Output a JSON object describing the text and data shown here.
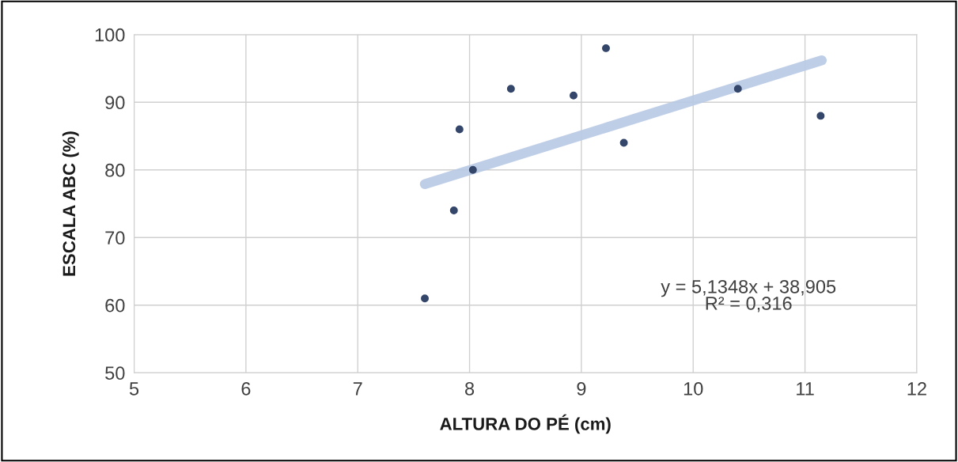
{
  "chart_data": {
    "type": "scatter",
    "xlabel": "ALTURA DO PÉ (cm)",
    "ylabel": "ESCALA ABC (%)",
    "series": [
      {
        "marker": "circle",
        "color": "#34466a",
        "x": [
          7.6,
          7.86,
          7.91,
          8.03,
          8.37,
          8.93,
          9.22,
          9.38,
          10.4,
          11.14
        ],
        "values": [
          61,
          74,
          86,
          80,
          92,
          91,
          98,
          84,
          92,
          88
        ]
      },
      {
        "type": "line",
        "color": "#b8c9e4",
        "x": [
          7.6,
          11.15
        ],
        "values": [
          77.9,
          96.2
        ]
      }
    ],
    "annotations": [
      "y = 5,1348x + 38,905\nR² = 0,316"
    ],
    "xlim": [
      5,
      12
    ],
    "xticks": [
      5,
      6,
      7,
      8,
      9,
      10,
      11,
      12
    ],
    "ylim": [
      50,
      100
    ],
    "yticks": [
      50,
      60,
      70,
      80,
      90,
      100
    ],
    "grid": true
  }
}
